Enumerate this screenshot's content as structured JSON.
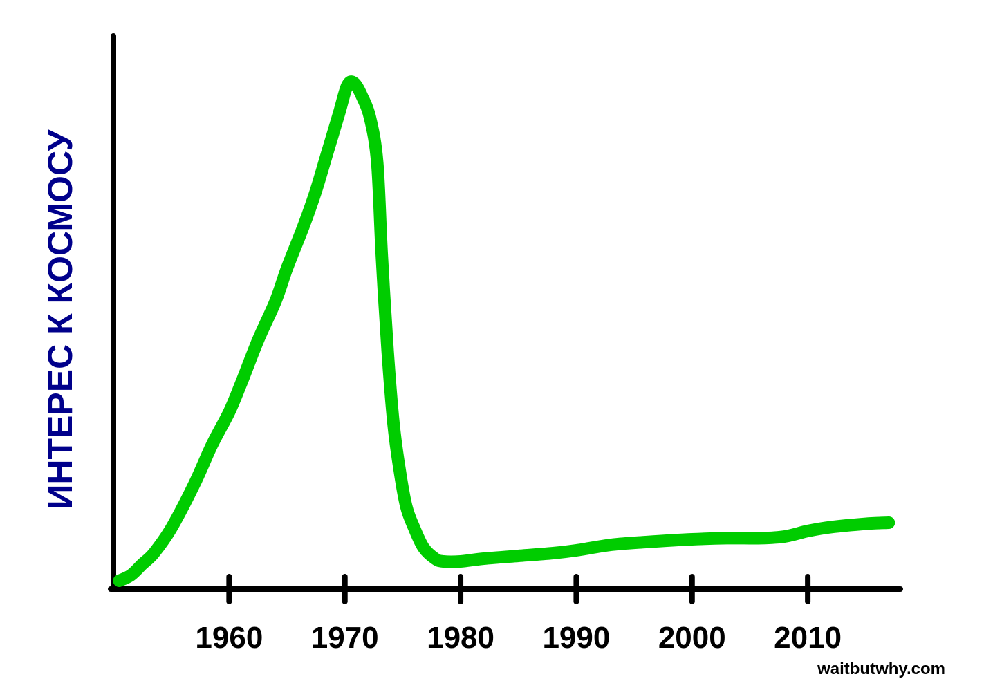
{
  "chart_data": {
    "type": "line",
    "title": "",
    "xlabel": "",
    "ylabel": "ИНТЕРЕС К КОСМОСУ",
    "x_ticks": [
      1960,
      1970,
      1980,
      1990,
      2000,
      2010
    ],
    "x_tick_labels": [
      "1960",
      "1970",
      "1980",
      "1990",
      "2000",
      "2010"
    ],
    "xlim": [
      1950,
      2018
    ],
    "ylim": [
      0,
      100
    ],
    "grid": false,
    "legend": "none",
    "series": [
      {
        "color": "#00cc00",
        "x": [
          1950.5,
          1951.5,
          1952.5,
          1953.5,
          1955,
          1957,
          1958.5,
          1960,
          1961,
          1962.5,
          1964,
          1965,
          1966.5,
          1967.5,
          1968.5,
          1969.5,
          1970.2,
          1970.8,
          1971.5,
          1972.2,
          1972.8,
          1973.2,
          1973.7,
          1974.2,
          1974.7,
          1975.3,
          1976,
          1976.8,
          1977.8,
          1978.5,
          1980,
          1982,
          1985,
          1988,
          1990,
          1993,
          1996,
          2000,
          2003,
          2006,
          2008,
          2010,
          2012,
          2015,
          2017
        ],
        "y": [
          1.5,
          2.5,
          4.5,
          6.5,
          11,
          19,
          26,
          32,
          37,
          45,
          52,
          58,
          66,
          72,
          79,
          86,
          91,
          91.5,
          89,
          85,
          77,
          60,
          43,
          30,
          22,
          15,
          11,
          7.5,
          5.5,
          5,
          5,
          5.5,
          6,
          6.5,
          7,
          8,
          8.5,
          9,
          9.2,
          9.2,
          9.5,
          10.5,
          11.2,
          11.8,
          12
        ]
      }
    ]
  },
  "watermark": "waitbutwhy.com",
  "colors": {
    "axis": "#000000",
    "line": "#00cc00",
    "ylabel": "#00008b"
  }
}
